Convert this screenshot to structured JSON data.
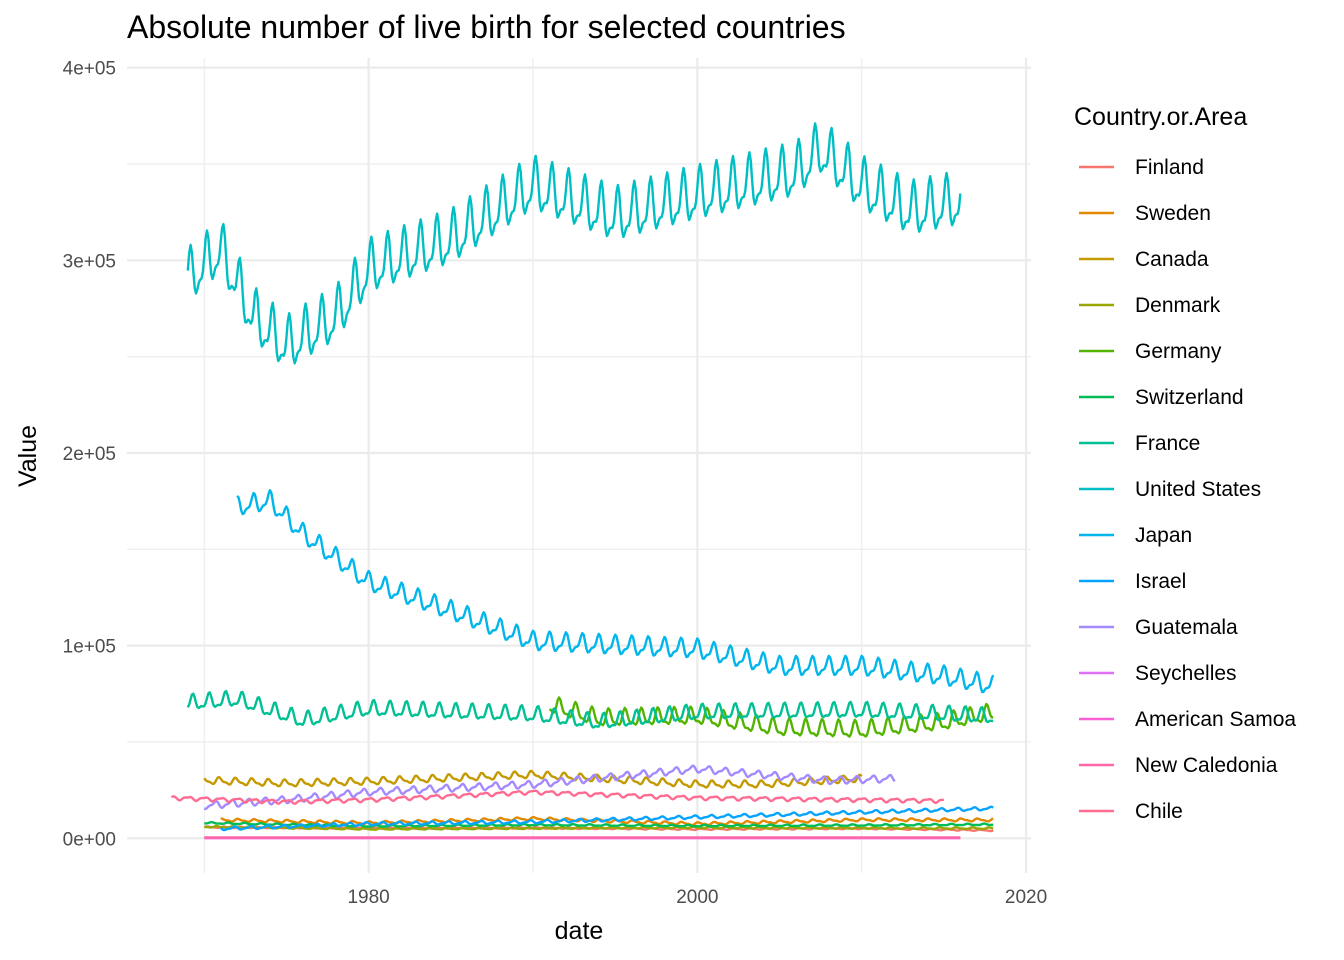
{
  "chart_data": {
    "type": "line",
    "title": "Absolute number of live birth for selected countries",
    "xlabel": "date",
    "ylabel": "Value",
    "xlim": [
      1965.3,
      2020.3
    ],
    "ylim": [
      -18000,
      405000
    ],
    "x_ticks": [
      1980,
      2000,
      2020
    ],
    "x_tick_labels": [
      "1980",
      "2000",
      "2020"
    ],
    "y_ticks": [
      0,
      100000,
      200000,
      300000,
      400000
    ],
    "y_tick_labels": [
      "0e+00",
      "1e+05",
      "2e+05",
      "3e+05",
      "4e+05"
    ],
    "grid": true,
    "legend": {
      "title": "Country.or.Area",
      "position": "right"
    },
    "series": [
      {
        "name": "Finland",
        "color": "#F8766D",
        "points": [
          [
            1970,
            5800
          ],
          [
            1980,
            5300
          ],
          [
            1990,
            5400
          ],
          [
            2000,
            4700
          ],
          [
            2010,
            5100
          ],
          [
            2018,
            4100
          ]
        ],
        "seasonal_amp": 400
      },
      {
        "name": "Sweden",
        "color": "#E38900",
        "points": [
          [
            1971,
            9500
          ],
          [
            1980,
            8000
          ],
          [
            1990,
            10200
          ],
          [
            2000,
            7500
          ],
          [
            2010,
            9600
          ],
          [
            2018,
            9500
          ]
        ],
        "seasonal_amp": 900
      },
      {
        "name": "Canada",
        "color": "#C49A00",
        "points": [
          [
            1970,
            30000
          ],
          [
            1975,
            28500
          ],
          [
            1980,
            29500
          ],
          [
            1990,
            33000
          ],
          [
            2000,
            28000
          ],
          [
            2004,
            28000
          ],
          [
            2010,
            31000
          ]
        ],
        "seasonal_amp": 2200
      },
      {
        "name": "Denmark",
        "color": "#99A800",
        "points": [
          [
            1970,
            6000
          ],
          [
            1980,
            4800
          ],
          [
            1990,
            5200
          ],
          [
            2000,
            5600
          ],
          [
            2010,
            5300
          ],
          [
            2018,
            5200
          ]
        ],
        "seasonal_amp": 500
      },
      {
        "name": "Germany",
        "color": "#53B400",
        "points": [
          [
            1991,
            69000
          ],
          [
            1994,
            62000
          ],
          [
            2000,
            63000
          ],
          [
            2005,
            57000
          ],
          [
            2010,
            56000
          ],
          [
            2015,
            60000
          ],
          [
            2018,
            65000
          ]
        ],
        "seasonal_amp": 5500
      },
      {
        "name": "Switzerland",
        "color": "#00BC56",
        "points": [
          [
            1970,
            8000
          ],
          [
            1980,
            6300
          ],
          [
            1990,
            7000
          ],
          [
            2000,
            6500
          ],
          [
            2010,
            6800
          ],
          [
            2018,
            7200
          ]
        ],
        "seasonal_amp": 500
      },
      {
        "name": "France",
        "color": "#00C094",
        "points": [
          [
            1969,
            70000
          ],
          [
            1972,
            72000
          ],
          [
            1976,
            61000
          ],
          [
            1980,
            67000
          ],
          [
            1990,
            64000
          ],
          [
            1994,
            60000
          ],
          [
            2000,
            65000
          ],
          [
            2010,
            66000
          ],
          [
            2018,
            63000
          ]
        ],
        "seasonal_amp": 5000
      },
      {
        "name": "United States",
        "color": "#00BFC4",
        "points": [
          [
            1969,
            290000
          ],
          [
            1971,
            305000
          ],
          [
            1973,
            270000
          ],
          [
            1975,
            255000
          ],
          [
            1978,
            270000
          ],
          [
            1980,
            295000
          ],
          [
            1985,
            310000
          ],
          [
            1990,
            338000
          ],
          [
            1995,
            322000
          ],
          [
            2000,
            333000
          ],
          [
            2006,
            345000
          ],
          [
            2007.5,
            357000
          ],
          [
            2010,
            338000
          ],
          [
            2013,
            325000
          ],
          [
            2016,
            330000
          ]
        ],
        "seasonal_amp": 17000
      },
      {
        "name": "Japan",
        "color": "#00B6EB",
        "points": [
          [
            1972,
            172000
          ],
          [
            1974,
            175000
          ],
          [
            1976,
            158000
          ],
          [
            1980,
            133000
          ],
          [
            1985,
            118000
          ],
          [
            1990,
            102000
          ],
          [
            1995,
            100000
          ],
          [
            2000,
            98000
          ],
          [
            2005,
            89000
          ],
          [
            2010,
            89000
          ],
          [
            2015,
            84000
          ],
          [
            2018,
            79000
          ]
        ],
        "seasonal_amp": 6000
      },
      {
        "name": "Israel",
        "color": "#06A4FF",
        "points": [
          [
            1971,
            5000
          ],
          [
            1980,
            7500
          ],
          [
            1990,
            8500
          ],
          [
            2000,
            11000
          ],
          [
            2010,
            13500
          ],
          [
            2018,
            15500
          ]
        ],
        "seasonal_amp": 1000
      },
      {
        "name": "Guatemala",
        "color": "#A58AFF",
        "points": [
          [
            1970,
            17000
          ],
          [
            1975,
            20000
          ],
          [
            1980,
            24000
          ],
          [
            1990,
            28000
          ],
          [
            2000,
            36000
          ],
          [
            2004,
            33000
          ],
          [
            2008,
            30000
          ],
          [
            2012,
            31000
          ]
        ],
        "seasonal_amp": 2200
      },
      {
        "name": "Seychelles",
        "color": "#DF70F8",
        "points": [
          [
            1970,
            150
          ],
          [
            2016,
            150
          ]
        ],
        "seasonal_amp": 0
      },
      {
        "name": "American Samoa",
        "color": "#FB61D7",
        "points": [
          [
            1970,
            120
          ],
          [
            2016,
            120
          ]
        ],
        "seasonal_amp": 0
      },
      {
        "name": "New Caledonia",
        "color": "#FF66A8",
        "points": [
          [
            1970,
            400
          ],
          [
            2016,
            400
          ]
        ],
        "seasonal_amp": 0
      },
      {
        "name": "Chile",
        "color": "#FF6C91",
        "points": [
          [
            1968,
            21000
          ],
          [
            1975,
            19000
          ],
          [
            1980,
            20000
          ],
          [
            1990,
            24000
          ],
          [
            2000,
            21000
          ],
          [
            2010,
            20000
          ],
          [
            2015,
            19500
          ]
        ],
        "seasonal_amp": 1200
      }
    ]
  }
}
